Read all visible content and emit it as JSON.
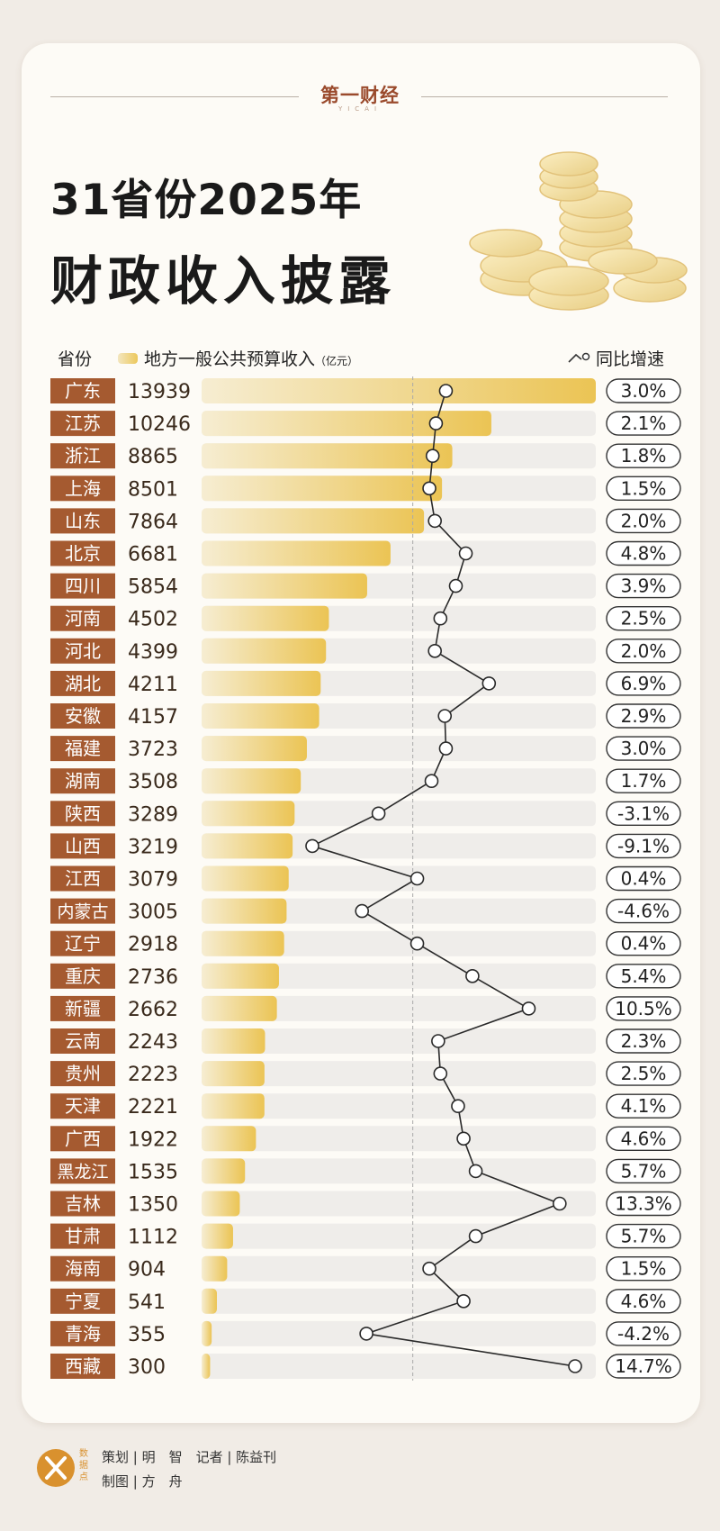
{
  "brand": {
    "name": "第一财经",
    "sub": "YICAI"
  },
  "title": {
    "line1": "31省份2025年",
    "line2": "财政收入披露"
  },
  "header": {
    "province_label": "省份",
    "revenue_label": "地方一般公共预算收入",
    "unit_label": "（亿元）",
    "growth_label": "同比增速"
  },
  "chart_data": {
    "type": "bar",
    "title": "31省份2025年财政收入披露",
    "categories": [
      "广东",
      "江苏",
      "浙江",
      "上海",
      "山东",
      "北京",
      "四川",
      "河南",
      "河北",
      "湖北",
      "安徽",
      "福建",
      "湖南",
      "陕西",
      "山西",
      "江西",
      "内蒙古",
      "辽宁",
      "重庆",
      "新疆",
      "云南",
      "贵州",
      "天津",
      "广西",
      "黑龙江",
      "吉林",
      "甘肃",
      "海南",
      "宁夏",
      "青海",
      "西藏"
    ],
    "series": [
      {
        "name": "地方一般公共预算收入",
        "unit": "亿元",
        "values": [
          13939,
          10246,
          8865,
          8501,
          7864,
          6681,
          5854,
          4502,
          4399,
          4211,
          4157,
          3723,
          3508,
          3289,
          3219,
          3079,
          3005,
          2918,
          2736,
          2662,
          2243,
          2223,
          2221,
          1922,
          1535,
          1350,
          1112,
          904,
          541,
          355,
          300
        ]
      },
      {
        "name": "同比增速",
        "unit": "%",
        "type": "line",
        "values": [
          3.0,
          2.1,
          1.8,
          1.5,
          2.0,
          4.8,
          3.9,
          2.5,
          2.0,
          6.9,
          2.9,
          3.0,
          1.7,
          -3.1,
          -9.1,
          0.4,
          -4.6,
          0.4,
          5.4,
          10.5,
          2.3,
          2.5,
          4.1,
          4.6,
          5.7,
          13.3,
          5.7,
          1.5,
          4.6,
          -4.2,
          14.7
        ],
        "labels": [
          "3.0%",
          "2.1%",
          "1.8%",
          "1.5%",
          "2.0%",
          "4.8%",
          "3.9%",
          "2.5%",
          "2.0%",
          "6.9%",
          "2.9%",
          "3.0%",
          "1.7%",
          "-3.1%",
          "-9.1%",
          "0.4%",
          "-4.6%",
          "0.4%",
          "5.4%",
          "10.5%",
          "2.3%",
          "2.5%",
          "4.1%",
          "4.6%",
          "5.7%",
          "13.3%",
          "5.7%",
          "1.5%",
          "4.6%",
          "-4.2%",
          "14.7%"
        ]
      }
    ],
    "growth_axis_range": [
      -9.1,
      14.7
    ],
    "reference_line": 0,
    "colors": {
      "province_tag": "#a55a30",
      "bar_start": "#f6edd2",
      "bar_end": "#ebc454",
      "track": "#efedea",
      "line": "#2a2a2a"
    }
  },
  "credits": {
    "logo_text": "数据点",
    "line1": "策划 | 明　智　记者 | 陈益刊",
    "line2": "制图 | 方　舟"
  }
}
